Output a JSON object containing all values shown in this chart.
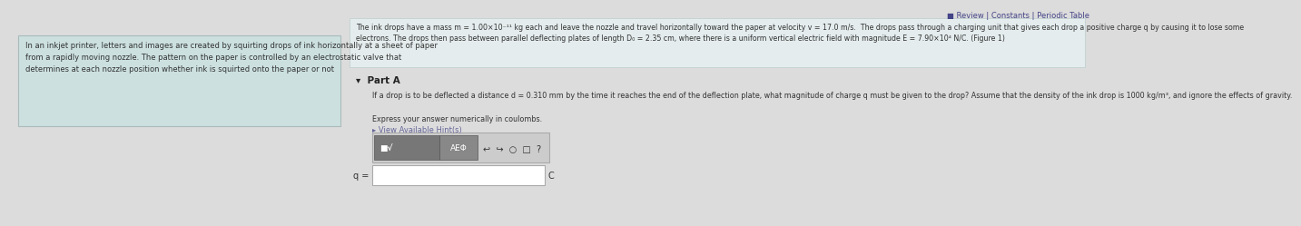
{
  "bg_color": "#dcdcdc",
  "left_panel_bg": "#cce0e0",
  "left_panel_text": "In an inkjet printer, letters and images are created by squirting drops of ink horizontally at a sheet of paper\nfrom a rapidly moving nozzle. The pattern on the paper is controlled by an electrostatic valve that\ndetermines at each nozzle position whether ink is squirted onto the paper or not",
  "top_right_text": "■ Review | Constants | Periodic Table",
  "intro_text_line1": "The ink drops have a mass m = 1.00×10⁻¹¹ kg each and leave the nozzle and travel horizontally toward the paper at velocity v = 17.0 m/s.  The drops pass through a charging unit that gives each drop a positive charge q by causing it to lose some",
  "intro_text_line2": "electrons. The drops then pass between parallel deflecting plates of length D₀ = 2.35 cm, where there is a uniform vertical electric field with magnitude E = 7.90×10⁴ N/C. (Figure 1)",
  "part_a_label": "▾  Part A",
  "part_a_question": "If a drop is to be deflected a distance d = 0.310 mm by the time it reaches the end of the deflection plate, what magnitude of charge q must be given to the drop? Assume that the density of the ink drop is 1000 kg/m³, and ignore the effects of gravity.",
  "express_text": "Express your answer numerically in coulombs.",
  "hint_text": "▸ View Available Hint(s)",
  "answer_label": "q =",
  "answer_unit": "C",
  "text_color": "#333333",
  "dark_text": "#222222",
  "link_color": "#444488",
  "hint_color": "#666699"
}
